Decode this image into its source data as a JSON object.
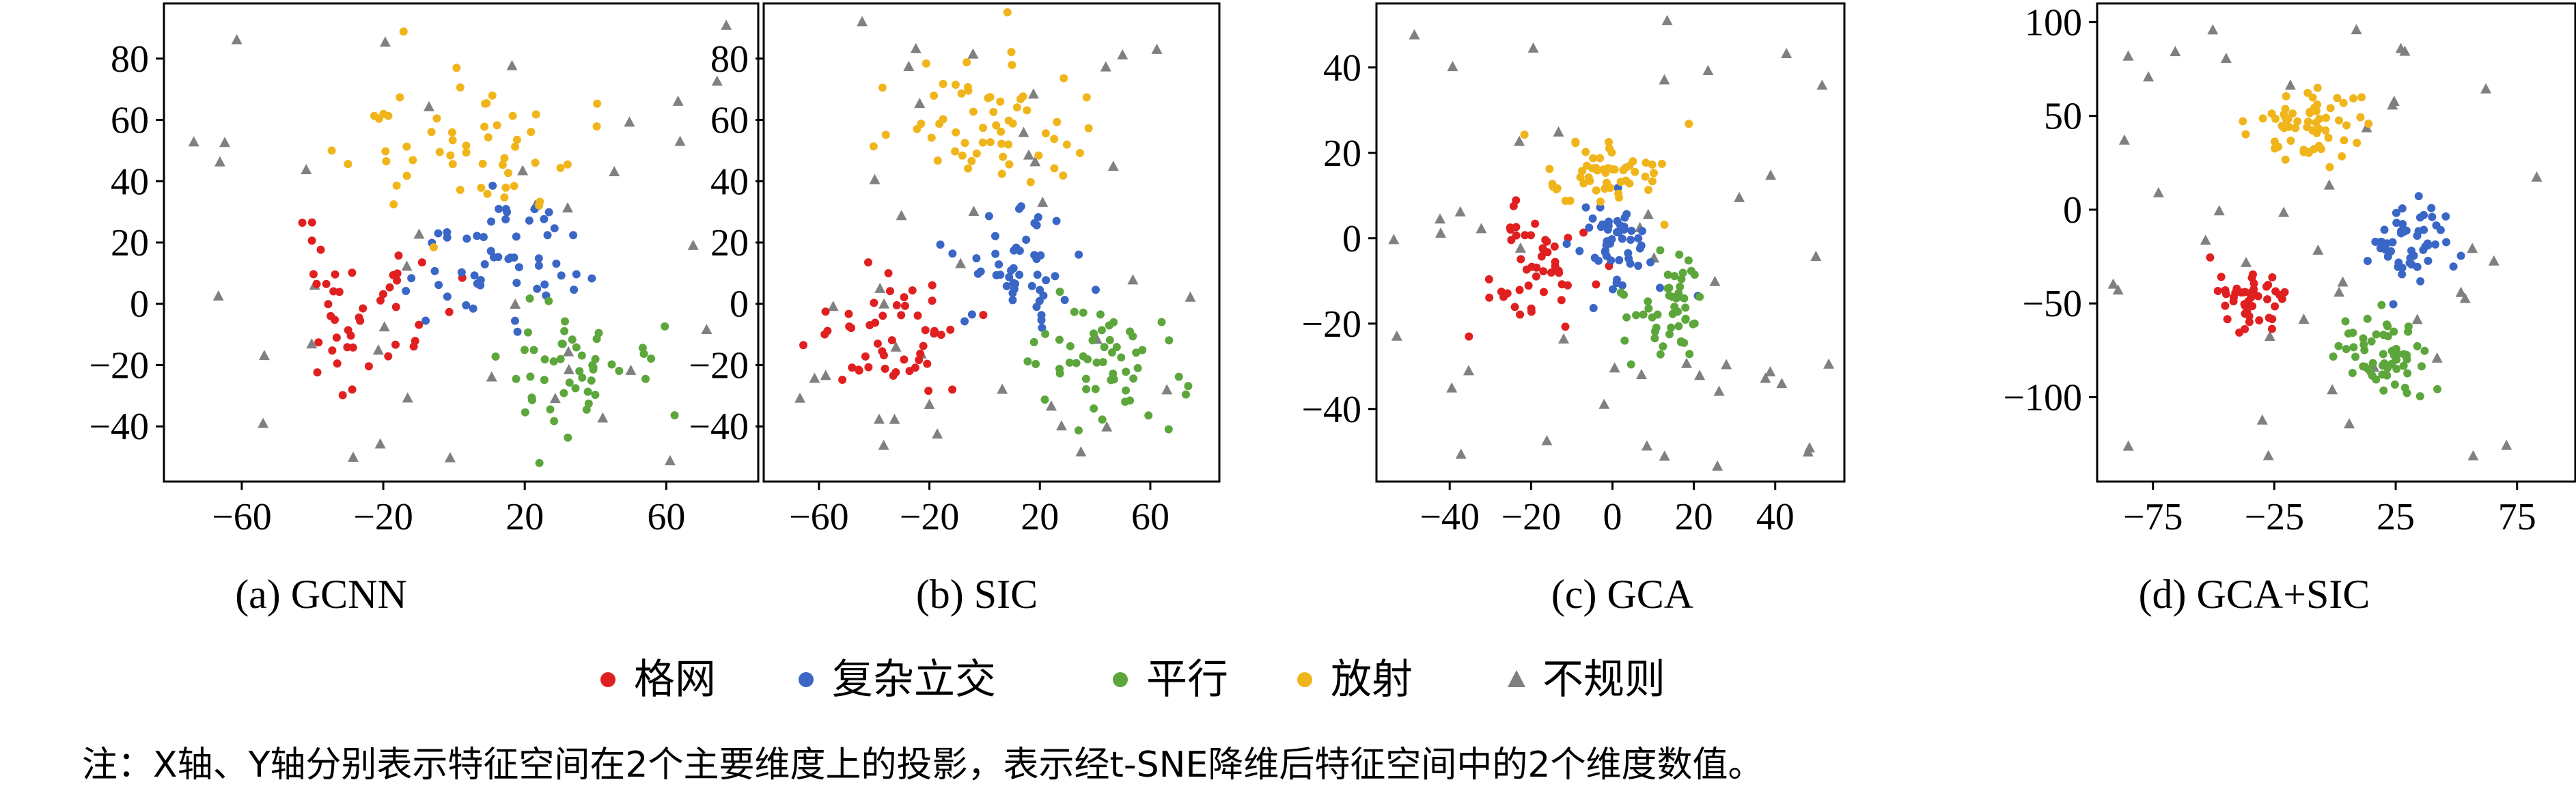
{
  "legend": [
    {
      "name": "格网",
      "color": "#e02020",
      "marker": "circle"
    },
    {
      "name": "复杂立交",
      "color": "#3a66c6",
      "marker": "circle"
    },
    {
      "name": "平行",
      "color": "#5da63c",
      "marker": "circle"
    },
    {
      "name": "放射",
      "color": "#f0b51b",
      "marker": "circle"
    },
    {
      "name": "不规则",
      "color": "#808080",
      "marker": "triangle"
    }
  ],
  "note": "注：X轴、Y轴分别表示特征空间在2个主要维度上的投影，表示经t-SNE降维后特征空间中的2个维度数值。",
  "chart_data": [
    {
      "type": "scatter",
      "caption": "(a) GCNN",
      "xlim": [
        -82,
        86
      ],
      "ylim": [
        -58,
        98
      ],
      "xticks": [
        -60,
        -20,
        20,
        60
      ],
      "yticks": [
        -40,
        -20,
        0,
        20,
        40,
        60,
        80
      ],
      "grid": false,
      "clusters": {
        "格网": {
          "cx": -25,
          "cy": -2,
          "sx": 13,
          "sy": 14,
          "n": 45,
          "seed": 11
        },
        "复杂立交": {
          "cx": 12,
          "cy": 15,
          "sx": 13,
          "sy": 11,
          "n": 55,
          "seed": 12
        },
        "平行": {
          "cx": 30,
          "cy": -22,
          "sx": 14,
          "sy": 12,
          "n": 50,
          "seed": 13
        },
        "放射": {
          "cx": 5,
          "cy": 50,
          "sx": 18,
          "sy": 13,
          "n": 55,
          "seed": 14
        },
        "不规则": {
          "cx": 0,
          "cy": 18,
          "sx": 48,
          "sy": 42,
          "n": 40,
          "seed": 15
        }
      }
    },
    {
      "type": "scatter",
      "caption": "(b) SIC",
      "xlim": [
        -80,
        85
      ],
      "ylim": [
        -58,
        98
      ],
      "xticks": [
        -60,
        -20,
        20,
        60
      ],
      "yticks": [
        -40,
        -20,
        0,
        20,
        40,
        60,
        80
      ],
      "grid": false,
      "clusters": {
        "格网": {
          "cx": -35,
          "cy": -10,
          "sx": 15,
          "sy": 14,
          "n": 50,
          "seed": 21
        },
        "复杂立交": {
          "cx": 12,
          "cy": 13,
          "sx": 10,
          "sy": 10,
          "n": 50,
          "seed": 22
        },
        "平行": {
          "cx": 40,
          "cy": -20,
          "sx": 17,
          "sy": 13,
          "n": 55,
          "seed": 23
        },
        "放射": {
          "cx": 0,
          "cy": 58,
          "sx": 22,
          "sy": 13,
          "n": 60,
          "seed": 24
        },
        "不规则": {
          "cx": 5,
          "cy": 20,
          "sx": 48,
          "sy": 42,
          "n": 40,
          "seed": 25
        }
      }
    },
    {
      "type": "scatter",
      "caption": "(c) GCA",
      "xlim": [
        -58,
        57
      ],
      "ylim": [
        -57,
        55
      ],
      "xticks": [
        -40,
        -20,
        0,
        20,
        40
      ],
      "yticks": [
        -40,
        -20,
        0,
        20,
        40
      ],
      "grid": false,
      "clusters": {
        "格网": {
          "cx": -19,
          "cy": -6,
          "sx": 7,
          "sy": 8,
          "n": 50,
          "seed": 31
        },
        "复杂立交": {
          "cx": 1,
          "cy": -1,
          "sx": 6,
          "sy": 6,
          "n": 50,
          "seed": 32
        },
        "平行": {
          "cx": 14,
          "cy": -17,
          "sx": 6,
          "sy": 6,
          "n": 50,
          "seed": 33
        },
        "放射": {
          "cx": -2,
          "cy": 16,
          "sx": 9,
          "sy": 5,
          "n": 55,
          "seed": 34
        },
        "不规则": {
          "cx": 0,
          "cy": 0,
          "sx": 32,
          "sy": 30,
          "n": 45,
          "seed": 35
        }
      }
    },
    {
      "type": "scatter",
      "caption": "(d) GCA+SIC",
      "xlim": [
        -98,
        99
      ],
      "ylim": [
        -145,
        110
      ],
      "xticks": [
        -75,
        -25,
        25,
        75
      ],
      "yticks": [
        -100,
        -50,
        0,
        50,
        100
      ],
      "grid": false,
      "clusters": {
        "格网": {
          "cx": -33,
          "cy": -48,
          "sx": 8,
          "sy": 9,
          "n": 50,
          "seed": 41
        },
        "复杂立交": {
          "cx": 30,
          "cy": -15,
          "sx": 10,
          "sy": 12,
          "n": 50,
          "seed": 42
        },
        "平行": {
          "cx": 20,
          "cy": -80,
          "sx": 11,
          "sy": 14,
          "n": 60,
          "seed": 43
        },
        "放射": {
          "cx": -12,
          "cy": 45,
          "sx": 15,
          "sy": 12,
          "n": 60,
          "seed": 44
        },
        "不规则": {
          "cx": 0,
          "cy": -20,
          "sx": 52,
          "sy": 62,
          "n": 42,
          "seed": 45
        }
      }
    }
  ]
}
